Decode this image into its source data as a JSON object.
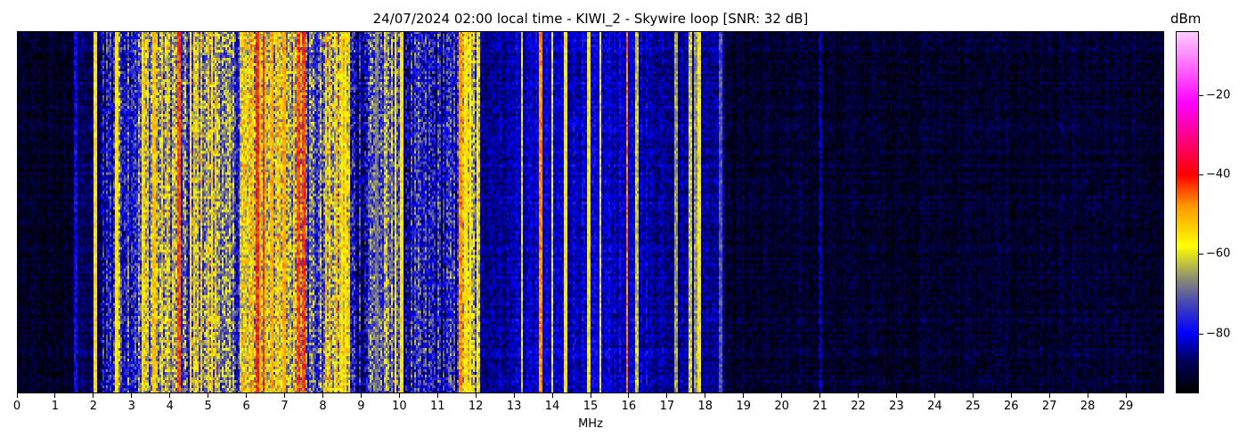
{
  "chart_data": {
    "type": "heatmap",
    "title": "24/07/2024 02:00 local time - KIWI_2 - Skywire loop [SNR: 32 dB]",
    "xlabel": "MHz",
    "ylabel": "",
    "xlim": [
      0,
      30
    ],
    "x_ticks": [
      "0",
      "1",
      "2",
      "3",
      "4",
      "5",
      "6",
      "7",
      "8",
      "9",
      "10",
      "11",
      "12",
      "13",
      "14",
      "15",
      "16",
      "17",
      "18",
      "19",
      "20",
      "21",
      "22",
      "23",
      "24",
      "25",
      "26",
      "27",
      "28",
      "29"
    ],
    "colorbar": {
      "label": "dBm",
      "range": [
        -95,
        -4
      ],
      "ticks": [
        -20,
        -40,
        -60,
        -80
      ],
      "tick_labels": [
        "−20",
        "−40",
        "−60",
        "−80"
      ],
      "colormap": [
        {
          "value": -95,
          "color": "#000000"
        },
        {
          "value": -87,
          "color": "#00005a"
        },
        {
          "value": -80,
          "color": "#0000ff"
        },
        {
          "value": -72,
          "color": "#4a4ab0"
        },
        {
          "value": -66,
          "color": "#909070"
        },
        {
          "value": -58,
          "color": "#ffff00"
        },
        {
          "value": -48,
          "color": "#ff9900"
        },
        {
          "value": -40,
          "color": "#ff0000"
        },
        {
          "value": -22,
          "color": "#ff00ff"
        },
        {
          "value": -4,
          "color": "#ffccff"
        }
      ]
    },
    "band_levels_dbm": [
      {
        "from": 0,
        "to": 1.45,
        "level": -92
      },
      {
        "from": 1.45,
        "to": 2.2,
        "level": -88
      },
      {
        "from": 2.2,
        "to": 2.5,
        "level": -79
      },
      {
        "from": 2.5,
        "to": 3.3,
        "level": -73
      },
      {
        "from": 3.3,
        "to": 4.3,
        "level": -64
      },
      {
        "from": 4.3,
        "to": 4.6,
        "level": -74
      },
      {
        "from": 4.6,
        "to": 5.4,
        "level": -63
      },
      {
        "from": 5.4,
        "to": 5.8,
        "level": -72
      },
      {
        "from": 5.8,
        "to": 6.8,
        "level": -60
      },
      {
        "from": 6.8,
        "to": 7.6,
        "level": -62
      },
      {
        "from": 7.6,
        "to": 8.0,
        "level": -72
      },
      {
        "from": 8.0,
        "to": 8.7,
        "level": -62
      },
      {
        "from": 8.7,
        "to": 9.2,
        "level": -80
      },
      {
        "from": 9.2,
        "to": 9.6,
        "level": -72
      },
      {
        "from": 9.6,
        "to": 10.1,
        "level": -70
      },
      {
        "from": 10.1,
        "to": 11.5,
        "level": -80
      },
      {
        "from": 11.5,
        "to": 12.1,
        "level": -67
      },
      {
        "from": 12.1,
        "to": 13.0,
        "level": -84
      },
      {
        "from": 13.0,
        "to": 16.5,
        "level": -82
      },
      {
        "from": 16.5,
        "to": 18.5,
        "level": -84
      },
      {
        "from": 18.5,
        "to": 30,
        "level": -91
      }
    ],
    "carriers_mhz_dbm": [
      [
        1.55,
        -80
      ],
      [
        2.05,
        -55
      ],
      [
        2.6,
        -56
      ],
      [
        3.28,
        -55
      ],
      [
        3.6,
        -52
      ],
      [
        4.25,
        -44
      ],
      [
        4.55,
        -55
      ],
      [
        5.1,
        -54
      ],
      [
        6.3,
        -42
      ],
      [
        6.45,
        -42
      ],
      [
        6.65,
        -50
      ],
      [
        7.0,
        -50
      ],
      [
        7.35,
        -44
      ],
      [
        7.5,
        -43
      ],
      [
        8.5,
        -55
      ],
      [
        8.6,
        -56
      ],
      [
        9.4,
        -68
      ],
      [
        9.9,
        -58
      ],
      [
        10.05,
        -56
      ],
      [
        11.6,
        -48
      ],
      [
        11.75,
        -55
      ],
      [
        11.85,
        -56
      ],
      [
        12.05,
        -58
      ],
      [
        13.2,
        -60
      ],
      [
        13.7,
        -48
      ],
      [
        14.0,
        -60
      ],
      [
        14.35,
        -56
      ],
      [
        14.95,
        -58
      ],
      [
        15.25,
        -60
      ],
      [
        15.95,
        -46
      ],
      [
        16.2,
        -62
      ],
      [
        17.25,
        -65
      ],
      [
        17.6,
        -62
      ],
      [
        17.75,
        -66
      ],
      [
        17.85,
        -58
      ],
      [
        18.4,
        -72
      ],
      [
        21.0,
        -84
      ]
    ]
  }
}
